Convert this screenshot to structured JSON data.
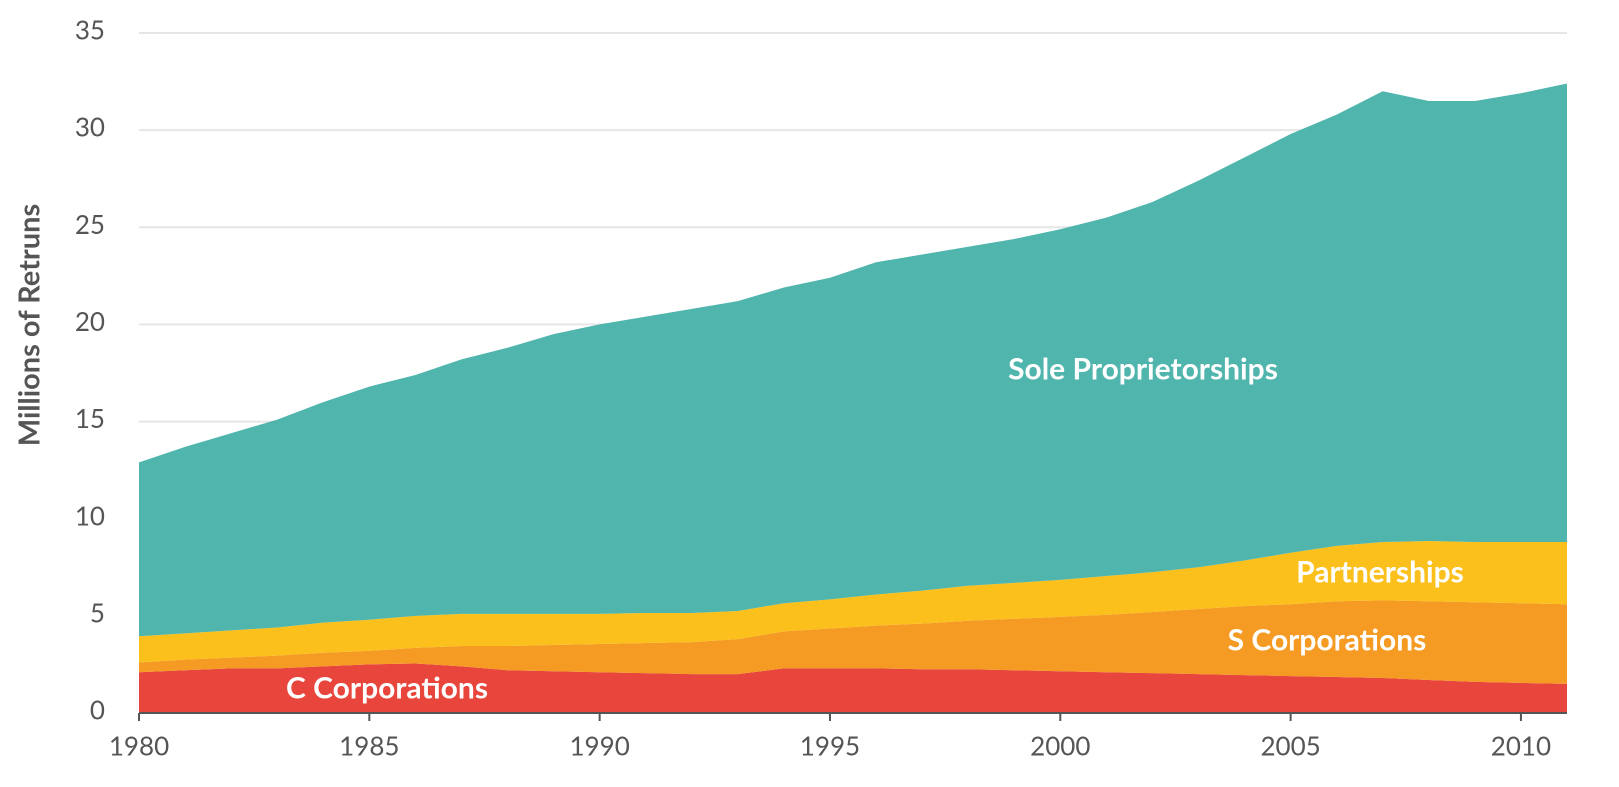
{
  "chart_data": {
    "type": "stacked-area",
    "y_label": "Millions of Retruns",
    "x": [
      1980,
      1981,
      1982,
      1983,
      1984,
      1985,
      1986,
      1987,
      1988,
      1989,
      1990,
      1991,
      1992,
      1993,
      1994,
      1995,
      1996,
      1997,
      1998,
      1999,
      2000,
      2001,
      2002,
      2003,
      2004,
      2005,
      2006,
      2007,
      2008,
      2009,
      2010,
      2011
    ],
    "series": [
      {
        "name": "C Corporations",
        "color": "#e8453c",
        "values": [
          2.1,
          2.2,
          2.3,
          2.3,
          2.4,
          2.5,
          2.55,
          2.4,
          2.2,
          2.15,
          2.1,
          2.05,
          2.0,
          2.0,
          2.3,
          2.3,
          2.3,
          2.25,
          2.25,
          2.2,
          2.15,
          2.1,
          2.05,
          2.0,
          1.95,
          1.9,
          1.85,
          1.8,
          1.7,
          1.6,
          1.55,
          1.5
        ]
      },
      {
        "name": "S Corporations",
        "color": "#f59a23",
        "values": [
          0.5,
          0.55,
          0.55,
          0.65,
          0.7,
          0.7,
          0.8,
          1.05,
          1.25,
          1.35,
          1.45,
          1.55,
          1.65,
          1.8,
          1.9,
          2.05,
          2.2,
          2.35,
          2.5,
          2.65,
          2.8,
          2.95,
          3.15,
          3.35,
          3.55,
          3.7,
          3.9,
          4.0,
          4.05,
          4.1,
          4.1,
          4.1
        ]
      },
      {
        "name": "Partnerships",
        "color": "#fbc01c",
        "values": [
          1.35,
          1.35,
          1.4,
          1.45,
          1.55,
          1.6,
          1.65,
          1.65,
          1.65,
          1.6,
          1.55,
          1.55,
          1.5,
          1.45,
          1.45,
          1.5,
          1.6,
          1.7,
          1.8,
          1.85,
          1.9,
          2.0,
          2.05,
          2.15,
          2.35,
          2.65,
          2.85,
          3.0,
          3.1,
          3.1,
          3.15,
          3.2
        ]
      },
      {
        "name": "Sole Proprietorships",
        "color": "#4fb5ad",
        "values": [
          8.95,
          9.6,
          10.15,
          10.7,
          11.35,
          12.0,
          12.4,
          13.1,
          13.7,
          14.4,
          14.9,
          15.25,
          15.65,
          15.95,
          16.25,
          16.55,
          17.1,
          17.3,
          17.45,
          17.7,
          18.05,
          18.45,
          19.05,
          19.9,
          20.75,
          21.55,
          22.2,
          23.2,
          22.65,
          22.7,
          23.1,
          23.6
        ]
      }
    ],
    "xlim": [
      1980,
      2011
    ],
    "xticks": [
      1980,
      1985,
      1990,
      1995,
      2000,
      2005,
      2010
    ],
    "ylim": [
      0,
      35
    ],
    "yticks": [
      0,
      5,
      10,
      15,
      20,
      25,
      30,
      35
    ],
    "grid": true
  }
}
